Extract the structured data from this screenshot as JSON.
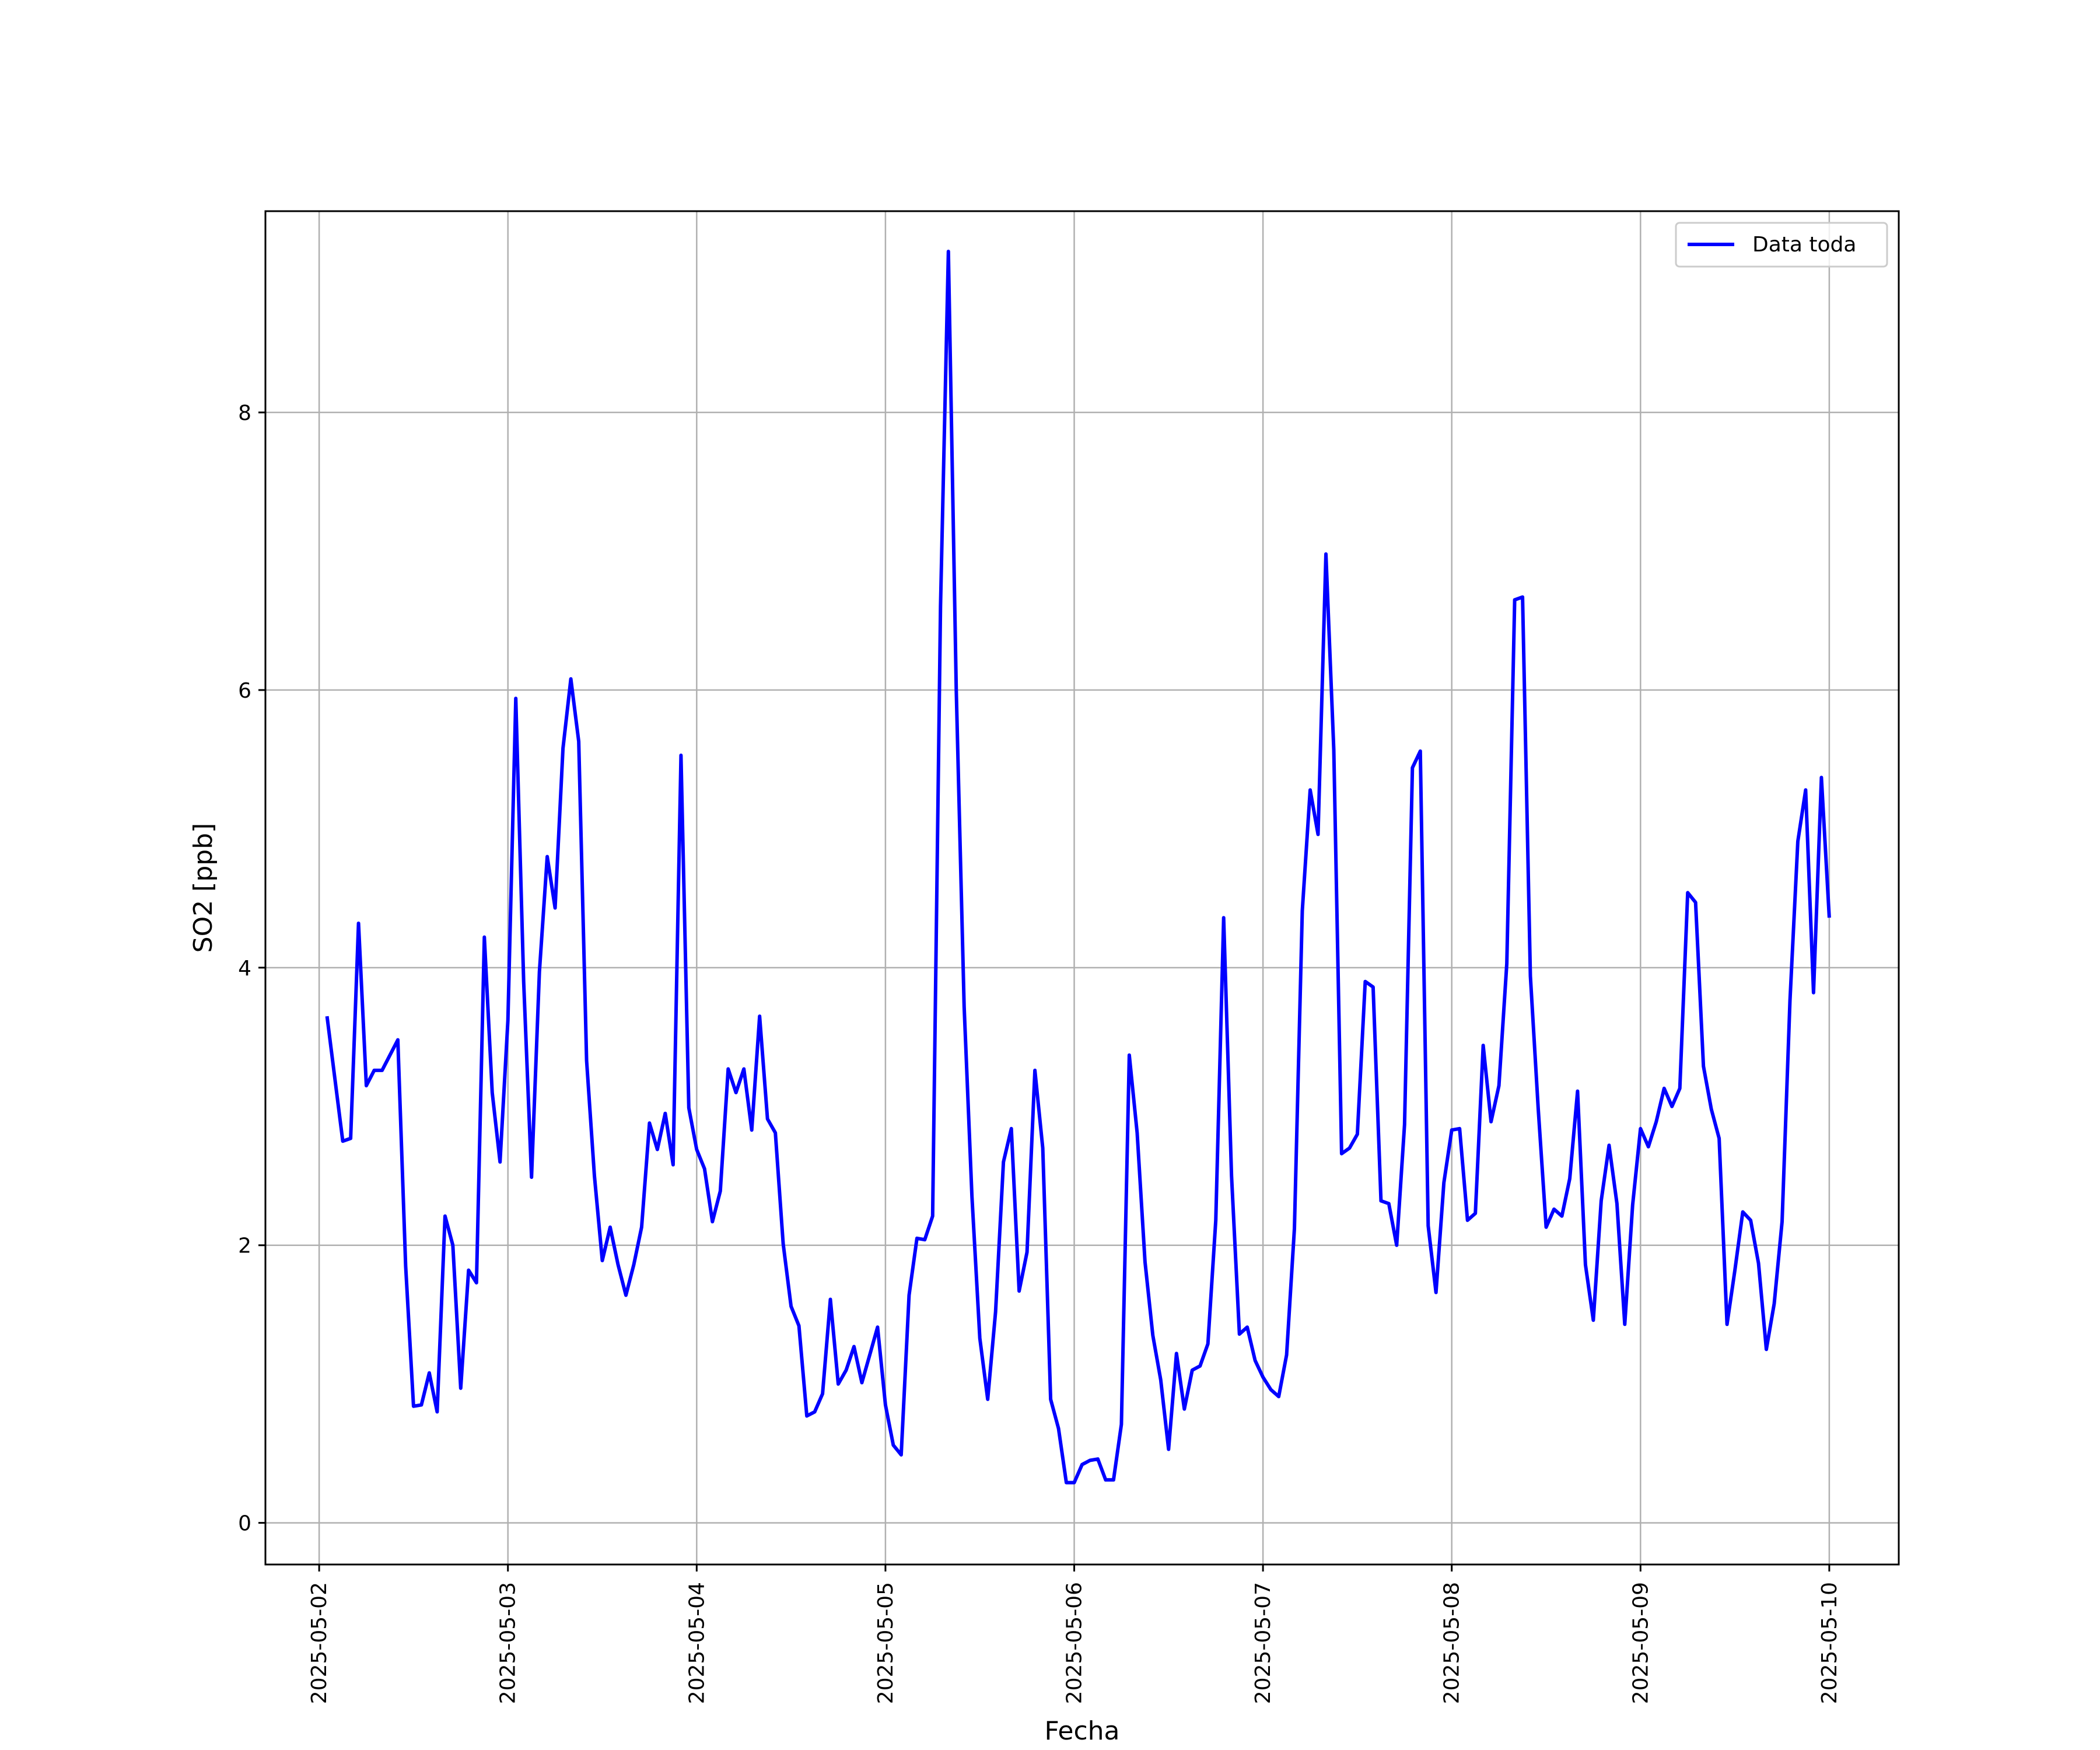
{
  "chart_data": {
    "type": "line",
    "title": "",
    "xlabel": "Fecha",
    "ylabel": "SO2 [ppb]",
    "xlim": [
      "2025-05-01 17:10",
      "2025-05-10 08:50"
    ],
    "ylim": [
      -0.3,
      9.45
    ],
    "grid": true,
    "legend_position": "top-right",
    "x_ticks": [
      "2025-05-02",
      "2025-05-03",
      "2025-05-04",
      "2025-05-05",
      "2025-05-06",
      "2025-05-07",
      "2025-05-08",
      "2025-05-09",
      "2025-05-10"
    ],
    "y_ticks": [
      0,
      2,
      4,
      6,
      8
    ],
    "series": [
      {
        "name": "Data toda",
        "color": "#0000ff",
        "x": [
          "2025-05-02 01:00",
          "2025-05-02 02:00",
          "2025-05-02 03:00",
          "2025-05-02 04:00",
          "2025-05-02 05:00",
          "2025-05-02 06:00",
          "2025-05-02 07:00",
          "2025-05-02 08:00",
          "2025-05-02 09:00",
          "2025-05-02 10:00",
          "2025-05-02 11:00",
          "2025-05-02 12:00",
          "2025-05-02 13:00",
          "2025-05-02 14:00",
          "2025-05-02 15:00",
          "2025-05-02 16:00",
          "2025-05-02 17:00",
          "2025-05-02 18:00",
          "2025-05-02 19:00",
          "2025-05-02 20:00",
          "2025-05-02 21:00",
          "2025-05-02 22:00",
          "2025-05-02 23:00",
          "2025-05-03 00:00",
          "2025-05-03 01:00",
          "2025-05-03 02:00",
          "2025-05-03 03:00",
          "2025-05-03 04:00",
          "2025-05-03 05:00",
          "2025-05-03 06:00",
          "2025-05-03 07:00",
          "2025-05-03 08:00",
          "2025-05-03 09:00",
          "2025-05-03 10:00",
          "2025-05-03 11:00",
          "2025-05-03 12:00",
          "2025-05-03 13:00",
          "2025-05-03 14:00",
          "2025-05-03 15:00",
          "2025-05-03 16:00",
          "2025-05-03 17:00",
          "2025-05-03 18:00",
          "2025-05-03 19:00",
          "2025-05-03 20:00",
          "2025-05-03 21:00",
          "2025-05-03 22:00",
          "2025-05-03 23:00",
          "2025-05-04 00:00",
          "2025-05-04 01:00",
          "2025-05-04 02:00",
          "2025-05-04 03:00",
          "2025-05-04 04:00",
          "2025-05-04 05:00",
          "2025-05-04 06:00",
          "2025-05-04 07:00",
          "2025-05-04 08:00",
          "2025-05-04 09:00",
          "2025-05-04 10:00",
          "2025-05-04 11:00",
          "2025-05-04 12:00",
          "2025-05-04 13:00",
          "2025-05-04 14:00",
          "2025-05-04 15:00",
          "2025-05-04 16:00",
          "2025-05-04 17:00",
          "2025-05-04 18:00",
          "2025-05-04 19:00",
          "2025-05-04 20:00",
          "2025-05-04 21:00",
          "2025-05-04 22:00",
          "2025-05-04 23:00",
          "2025-05-05 00:00",
          "2025-05-05 01:00",
          "2025-05-05 02:00",
          "2025-05-05 03:00",
          "2025-05-05 04:00",
          "2025-05-05 05:00",
          "2025-05-05 06:00",
          "2025-05-05 07:00",
          "2025-05-05 08:00",
          "2025-05-05 09:00",
          "2025-05-05 10:00",
          "2025-05-05 11:00",
          "2025-05-05 12:00",
          "2025-05-05 13:00",
          "2025-05-05 14:00",
          "2025-05-05 15:00",
          "2025-05-05 16:00",
          "2025-05-05 17:00",
          "2025-05-05 18:00",
          "2025-05-05 19:00",
          "2025-05-05 20:00",
          "2025-05-05 21:00",
          "2025-05-05 22:00",
          "2025-05-05 23:00",
          "2025-05-06 00:00",
          "2025-05-06 01:00",
          "2025-05-06 02:00",
          "2025-05-06 03:00",
          "2025-05-06 04:00",
          "2025-05-06 05:00",
          "2025-05-06 06:00",
          "2025-05-06 07:00",
          "2025-05-06 08:00",
          "2025-05-06 09:00",
          "2025-05-06 10:00",
          "2025-05-06 11:00",
          "2025-05-06 12:00",
          "2025-05-06 13:00",
          "2025-05-06 14:00",
          "2025-05-06 15:00",
          "2025-05-06 16:00",
          "2025-05-06 17:00",
          "2025-05-06 18:00",
          "2025-05-06 19:00",
          "2025-05-06 20:00",
          "2025-05-06 21:00",
          "2025-05-06 22:00",
          "2025-05-06 23:00",
          "2025-05-07 00:00",
          "2025-05-07 01:00",
          "2025-05-07 02:00",
          "2025-05-07 03:00",
          "2025-05-07 04:00",
          "2025-05-07 05:00",
          "2025-05-07 06:00",
          "2025-05-07 07:00",
          "2025-05-07 08:00",
          "2025-05-07 09:00",
          "2025-05-07 10:00",
          "2025-05-07 11:00",
          "2025-05-07 12:00",
          "2025-05-07 13:00",
          "2025-05-07 14:00",
          "2025-05-07 15:00",
          "2025-05-07 16:00",
          "2025-05-07 17:00",
          "2025-05-07 18:00",
          "2025-05-07 19:00",
          "2025-05-07 20:00",
          "2025-05-07 21:00",
          "2025-05-07 22:00",
          "2025-05-07 23:00",
          "2025-05-08 00:00",
          "2025-05-08 01:00",
          "2025-05-08 02:00",
          "2025-05-08 03:00",
          "2025-05-08 04:00",
          "2025-05-08 05:00",
          "2025-05-08 06:00",
          "2025-05-08 07:00",
          "2025-05-08 08:00",
          "2025-05-08 09:00",
          "2025-05-08 10:00",
          "2025-05-08 11:00",
          "2025-05-08 12:00",
          "2025-05-08 13:00",
          "2025-05-08 14:00",
          "2025-05-08 15:00",
          "2025-05-08 16:00",
          "2025-05-08 17:00",
          "2025-05-08 18:00",
          "2025-05-08 19:00",
          "2025-05-08 20:00",
          "2025-05-08 21:00",
          "2025-05-08 22:00",
          "2025-05-08 23:00",
          "2025-05-09 00:00",
          "2025-05-09 01:00",
          "2025-05-09 02:00",
          "2025-05-09 03:00",
          "2025-05-09 04:00",
          "2025-05-09 05:00",
          "2025-05-09 06:00",
          "2025-05-09 07:00",
          "2025-05-09 08:00",
          "2025-05-09 09:00",
          "2025-05-09 10:00",
          "2025-05-09 11:00",
          "2025-05-09 12:00",
          "2025-05-09 13:00",
          "2025-05-09 14:00",
          "2025-05-09 15:00",
          "2025-05-09 16:00",
          "2025-05-09 17:00",
          "2025-05-09 18:00",
          "2025-05-09 19:00",
          "2025-05-09 20:00",
          "2025-05-09 21:00",
          "2025-05-09 22:00",
          "2025-05-09 23:00",
          "2025-05-10 00:00"
        ],
        "values": [
          3.65,
          3.2,
          2.75,
          2.77,
          4.32,
          3.15,
          3.26,
          3.26,
          3.37,
          3.48,
          1.85,
          0.84,
          0.85,
          1.08,
          0.8,
          2.21,
          2.0,
          0.97,
          1.82,
          1.73,
          4.22,
          3.1,
          2.6,
          3.62,
          5.94,
          3.9,
          2.49,
          3.97,
          4.8,
          4.43,
          5.58,
          6.08,
          5.63,
          3.33,
          2.5,
          1.89,
          2.13,
          1.86,
          1.64,
          1.86,
          2.13,
          2.88,
          2.69,
          2.95,
          2.58,
          5.53,
          2.99,
          2.69,
          2.55,
          2.17,
          2.39,
          3.27,
          3.1,
          3.27,
          2.83,
          3.65,
          2.91,
          2.81,
          2.01,
          1.56,
          1.42,
          0.77,
          0.8,
          0.93,
          1.61,
          1.0,
          1.1,
          1.27,
          1.01,
          1.21,
          1.41,
          0.85,
          0.56,
          0.49,
          1.64,
          2.05,
          2.04,
          2.21,
          6.6,
          9.16,
          6.0,
          3.72,
          2.35,
          1.33,
          0.89,
          1.52,
          2.6,
          2.84,
          1.67,
          1.95,
          3.26,
          2.7,
          0.89,
          0.68,
          0.29,
          0.29,
          0.42,
          0.45,
          0.46,
          0.31,
          0.31,
          0.71,
          3.37,
          2.81,
          1.88,
          1.35,
          1.03,
          0.53,
          1.22,
          0.82,
          1.1,
          1.13,
          1.29,
          2.18,
          4.36,
          2.5,
          1.36,
          1.41,
          1.17,
          1.05,
          0.96,
          0.91,
          1.21,
          2.12,
          4.41,
          5.28,
          4.96,
          6.98,
          5.57,
          2.66,
          2.7,
          2.8,
          3.9,
          3.86,
          2.32,
          2.3,
          2.0,
          2.87,
          5.44,
          5.56,
          2.14,
          1.66,
          2.45,
          2.83,
          2.84,
          2.18,
          2.23,
          3.44,
          2.89,
          3.15,
          4.03,
          6.65,
          6.67,
          3.94,
          2.98,
          2.13,
          2.26,
          2.21,
          2.48,
          3.11,
          1.86,
          1.46,
          2.32,
          2.72,
          2.3,
          1.43,
          2.29,
          2.84,
          2.71,
          2.89,
          3.13,
          3.0,
          3.13,
          4.54,
          4.47,
          3.29,
          2.98,
          2.77,
          1.43,
          1.82,
          2.24,
          2.18,
          1.87,
          1.25,
          1.58,
          2.17,
          3.76,
          4.91,
          5.28,
          3.82,
          5.37,
          4.36
        ]
      }
    ]
  }
}
